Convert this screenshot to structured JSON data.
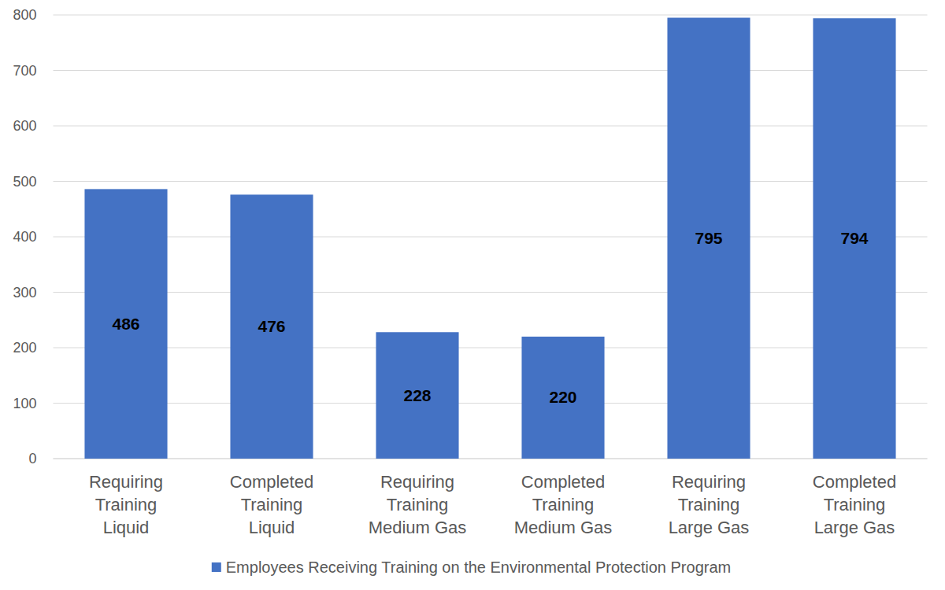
{
  "chart_data": {
    "type": "bar",
    "categories": [
      "Requiring\nTraining\nLiquid",
      "Completed\nTraining\nLiquid",
      "Requiring\nTraining\nMedium Gas",
      "Completed\nTraining\nMedium Gas",
      "Requiring\nTraining\nLarge Gas",
      "Completed\nTraining\nLarge Gas"
    ],
    "series": [
      {
        "name": "Employees Receiving Training on the Environmental Protection Program",
        "color": "#4472c4",
        "values": [
          486,
          476,
          228,
          220,
          795,
          794
        ]
      }
    ],
    "ylim": [
      0,
      800
    ],
    "yticks": [
      0,
      100,
      200,
      300,
      400,
      500,
      600,
      700,
      800
    ],
    "grid": true,
    "data_labels": true,
    "legend": "bottom"
  }
}
